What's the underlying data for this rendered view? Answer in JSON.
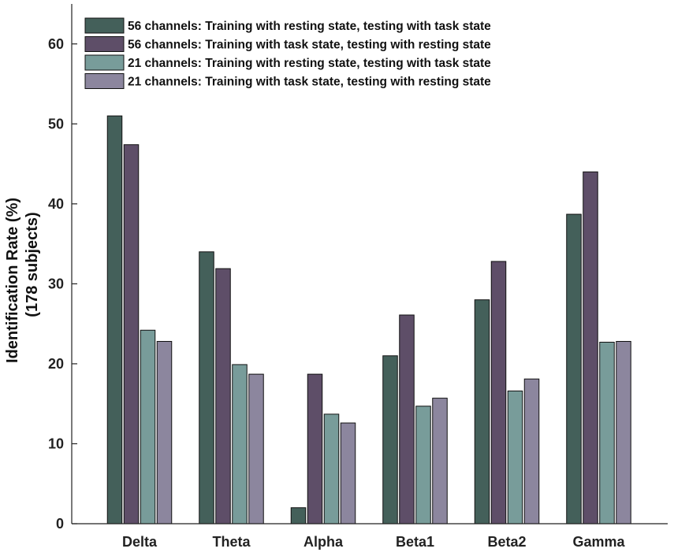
{
  "chart_data": {
    "type": "bar",
    "categories": [
      "Delta",
      "Theta",
      "Alpha",
      "Beta1",
      "Beta2",
      "Gamma"
    ],
    "series": [
      {
        "name": "56 channels: Training with resting state, testing with task state",
        "color": "#44605A",
        "values": [
          51,
          34,
          2,
          21,
          28,
          38.7
        ]
      },
      {
        "name": "56 channels: Training with task state, testing with resting state",
        "color": "#5E4E68",
        "values": [
          47.4,
          31.9,
          18.7,
          26.1,
          32.8,
          44
        ]
      },
      {
        "name": "21 channels: Training with resting state, testing with task state",
        "color": "#789C9A",
        "values": [
          24.2,
          19.9,
          13.7,
          14.7,
          16.6,
          22.7
        ]
      },
      {
        "name": "21 channels: Training with task state, testing with resting state",
        "color": "#8C869E",
        "values": [
          22.8,
          18.7,
          12.6,
          15.7,
          18.1,
          22.8
        ]
      }
    ],
    "ylabel_lines": [
      "Identification Rate (%)",
      "(178 subjects)"
    ],
    "ylim": [
      0,
      65
    ],
    "yticks": [
      0,
      10,
      20,
      30,
      40,
      50,
      60
    ],
    "legend_position": "top-left",
    "grid": false
  }
}
